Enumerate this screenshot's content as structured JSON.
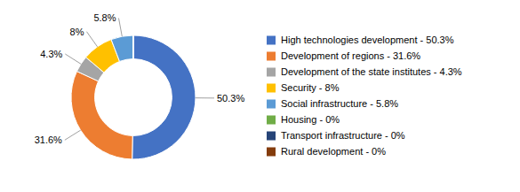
{
  "chart_data": {
    "type": "pie",
    "categories": [
      "High technologies development - 50.3%",
      "Development of regions - 31.6%",
      "Development of the state institutes - 4.3%",
      "Security - 8%",
      "Social infrastructure - 5.8%",
      "Housing - 0%",
      "Transport infrastructure - 0%",
      "Rural development - 0%"
    ],
    "values": [
      50.3,
      31.6,
      4.3,
      8.0,
      5.8,
      0.0001,
      0.0001,
      0.0001
    ],
    "value_labels": [
      "50.3%",
      "31.6%",
      "4.3%",
      "8%",
      "5.8%",
      null,
      null,
      null
    ],
    "colors": [
      "#4472C4",
      "#ED7D31",
      "#A5A5A5",
      "#FFC000",
      "#5B9BD5",
      "#70AD47",
      "#264478",
      "#843C0C"
    ],
    "data_labels": true,
    "legend": "right"
  }
}
